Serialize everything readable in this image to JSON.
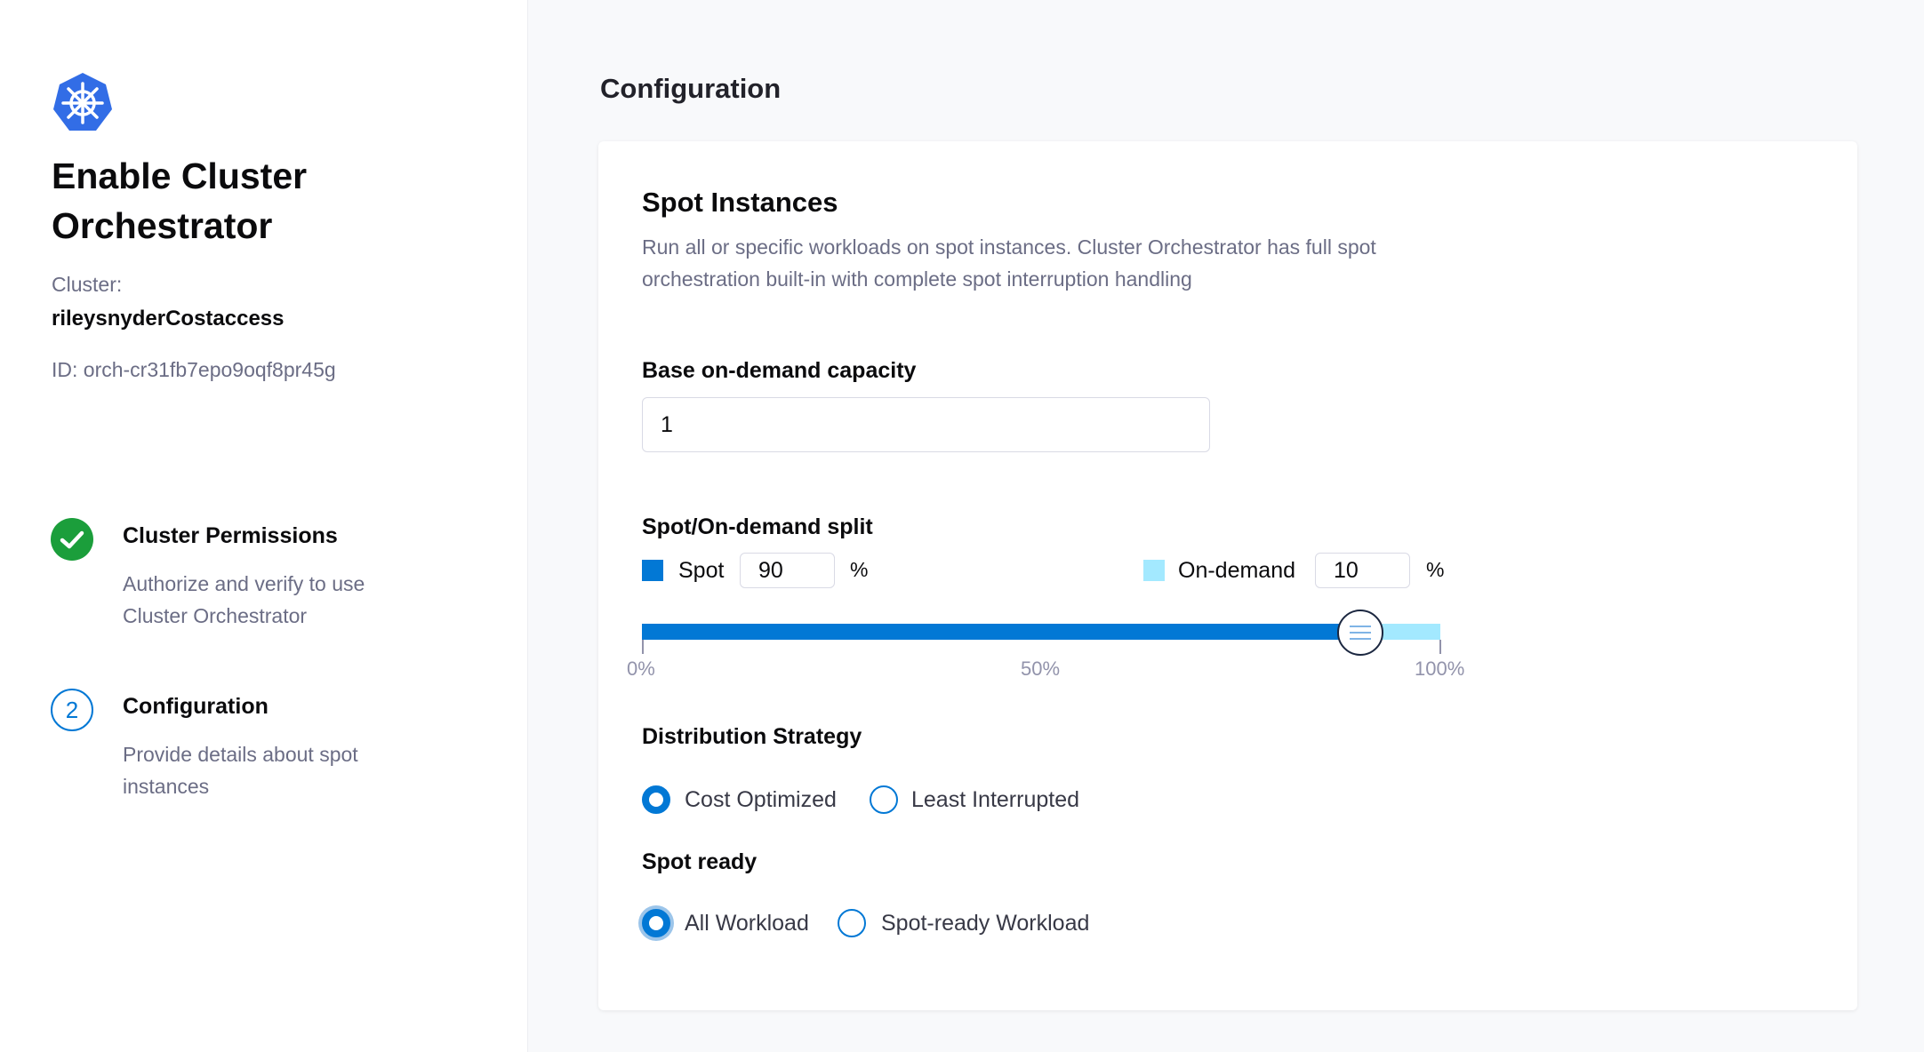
{
  "sidebar": {
    "logo_icon": "kubernetes-helm-icon",
    "title_line1": "Enable Cluster",
    "title_line2": "Orchestrator",
    "cluster_label": "Cluster:",
    "cluster_name": "rileysnyderCostaccess",
    "cluster_id": "ID: orch-cr31fb7epo9oqf8pr45g",
    "steps": [
      {
        "title": "Cluster Permissions",
        "desc_line1": "Authorize and verify to use",
        "desc_line2": "Cluster Orchestrator",
        "status": "complete",
        "icon": "check-circle-icon"
      },
      {
        "title": "Configuration",
        "desc_line1": "Provide details about spot",
        "desc_line2": "instances",
        "status": "current",
        "number": "2"
      }
    ]
  },
  "main": {
    "heading": "Configuration",
    "card": {
      "title": "Spot Instances",
      "desc_line1": "Run all or specific workloads on spot instances. Cluster Orchestrator has full spot",
      "desc_line2": "orchestration built-in with complete spot interruption handling",
      "base_capacity_label": "Base on-demand capacity",
      "base_capacity_value": "1",
      "split_label": "Spot/On-demand split",
      "spot_label": "Spot",
      "spot_value": "90",
      "spot_unit": "%",
      "spot_color": "#0278d5",
      "ondemand_label": "On-demand",
      "ondemand_value": "10",
      "ondemand_unit": "%",
      "ondemand_color": "#a3e9ff",
      "slider_value_percent": 90,
      "ticks": [
        "0%",
        "50%",
        "100%"
      ],
      "distribution_label": "Distribution Strategy",
      "distribution_options": [
        {
          "label": "Cost Optimized",
          "selected": true
        },
        {
          "label": "Least Interrupted",
          "selected": false
        }
      ],
      "spot_ready_label": "Spot ready",
      "spot_ready_options": [
        {
          "label": "All Workload",
          "selected": true
        },
        {
          "label": "Spot-ready Workload",
          "selected": false
        }
      ]
    }
  }
}
